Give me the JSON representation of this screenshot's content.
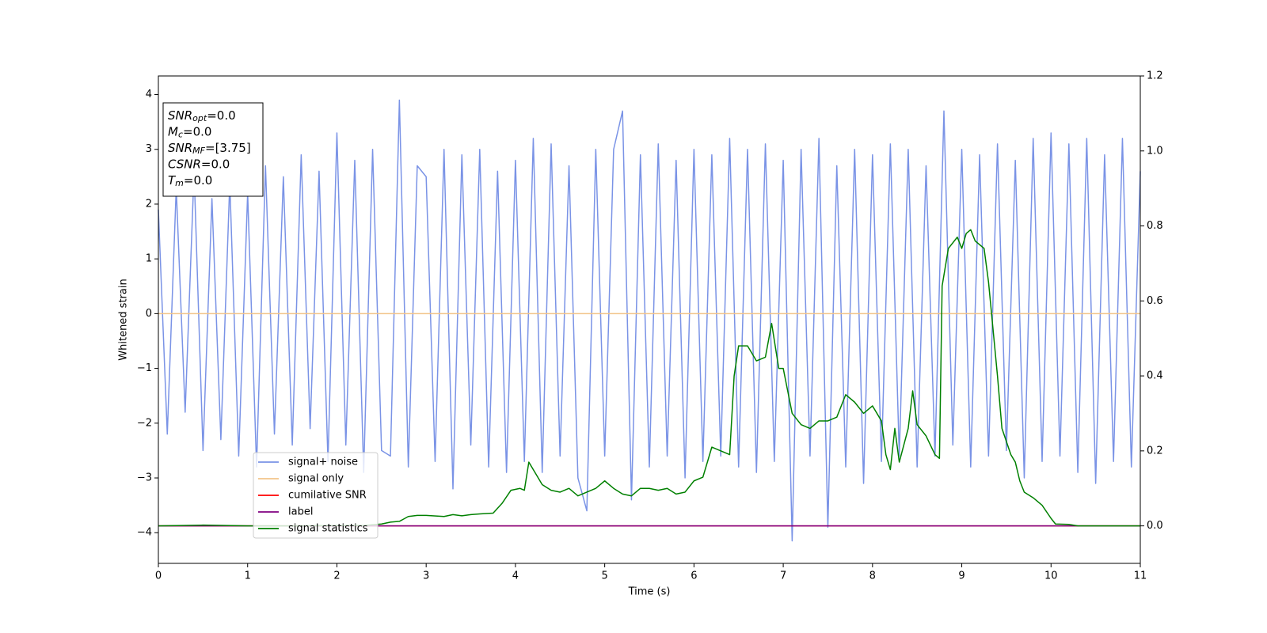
{
  "chart_data": {
    "type": "line",
    "xlabel": "Time (s)",
    "ylabel": "Whitened strain",
    "xlim": [
      0,
      11
    ],
    "xticks": [
      0,
      1,
      2,
      3,
      4,
      5,
      6,
      7,
      8,
      9,
      10,
      11
    ],
    "ylim": [
      -4.56,
      4.34
    ],
    "yticks": [
      {
        "value": -4,
        "label": "−4"
      },
      {
        "value": -3,
        "label": "−3"
      },
      {
        "value": -2,
        "label": "−2"
      },
      {
        "value": -1,
        "label": "−1"
      },
      0,
      1,
      2,
      3,
      4
    ],
    "y2lim": [
      -0.1,
      1.2
    ],
    "y2ticks": [
      {
        "value": 0,
        "label": "0.0"
      },
      0.2,
      0.4,
      0.6,
      0.8,
      {
        "value": 1,
        "label": "1.0"
      },
      1.2
    ],
    "annotations": [
      {
        "symbol": "SNR",
        "subscript": "opt",
        "text": "=0.0"
      },
      {
        "symbol": "M",
        "subscript": "c",
        "text": "=0.0"
      },
      {
        "symbol": "SNR",
        "subscript": "MF",
        "text": "=[3.75]"
      },
      {
        "symbol": "CSNR",
        "text": "=0.0"
      },
      {
        "symbol": "T",
        "subscript": "m",
        "text": "=0.0"
      }
    ],
    "series": [
      {
        "name": "signal+ noise",
        "color": "#7a93e6",
        "x": [
          0,
          0.1,
          0.2,
          0.3,
          0.4,
          0.5,
          0.6,
          0.7,
          0.8,
          0.9,
          1,
          1.1,
          1.2,
          1.3,
          1.4,
          1.5,
          1.6,
          1.7,
          1.8,
          1.9,
          2,
          2.1,
          2.2,
          2.3,
          2.4,
          2.5,
          2.6,
          2.7,
          2.8,
          2.9,
          3,
          3.1,
          3.2,
          3.3,
          3.4,
          3.5,
          3.6,
          3.7,
          3.8,
          3.9,
          4,
          4.1,
          4.2,
          4.3,
          4.4,
          4.5,
          4.6,
          4.7,
          4.8,
          4.9,
          5,
          5.1,
          5.2,
          5.3,
          5.4,
          5.5,
          5.6,
          5.7,
          5.8,
          5.9,
          6,
          6.1,
          6.2,
          6.3,
          6.4,
          6.5,
          6.6,
          6.7,
          6.8,
          6.9,
          7,
          7.1,
          7.2,
          7.3,
          7.4,
          7.5,
          7.6,
          7.7,
          7.8,
          7.9,
          8,
          8.1,
          8.2,
          8.3,
          8.4,
          8.5,
          8.6,
          8.7,
          8.8,
          8.9,
          9,
          9.1,
          9.2,
          9.3,
          9.4,
          9.5,
          9.6,
          9.7,
          9.8,
          9.9,
          10,
          10.1,
          10.2,
          10.3,
          10.4,
          10.5,
          10.6,
          10.7,
          10.8,
          10.9,
          11
        ],
        "values": [
          1.9,
          -2.2,
          2.3,
          -1.8,
          2.6,
          -2.5,
          2.1,
          -2.3,
          2.4,
          -2.6,
          2.2,
          -2.8,
          2.7,
          -2.2,
          2.5,
          -2.4,
          2.9,
          -2.1,
          2.6,
          -2.7,
          3.3,
          -2.4,
          2.8,
          -2.9,
          3.0,
          -2.5,
          -2.6,
          3.9,
          -2.8,
          2.7,
          2.5,
          -2.7,
          3.0,
          -3.2,
          2.9,
          -2.4,
          3.0,
          -2.8,
          2.6,
          -2.9,
          2.8,
          -2.7,
          3.2,
          -2.9,
          3.1,
          -2.6,
          2.7,
          -3.0,
          -3.6,
          3.0,
          -2.6,
          3.0,
          3.7,
          -3.4,
          2.9,
          -2.8,
          3.1,
          -2.6,
          2.8,
          -3.0,
          3.0,
          -2.7,
          2.9,
          -2.6,
          3.2,
          -2.8,
          3.0,
          -2.9,
          3.1,
          -2.7,
          2.8,
          -4.15,
          3.0,
          -2.6,
          3.2,
          -3.9,
          2.7,
          -2.8,
          3.0,
          -3.1,
          2.9,
          -2.7,
          3.1,
          -2.6,
          3.0,
          -2.8,
          2.7,
          -2.6,
          3.7,
          -2.4,
          3.0,
          -2.8,
          2.9,
          -2.6,
          3.1,
          -2.5,
          2.8,
          -3.0,
          3.2,
          -2.7,
          3.3,
          -2.6,
          3.1,
          -2.9,
          3.2,
          -3.1,
          2.9,
          -2.7,
          3.2,
          -2.8,
          2.6
        ]
      },
      {
        "name": "signal only",
        "color": "#f2c48a",
        "x": [
          0,
          11
        ],
        "values": [
          0,
          0
        ]
      },
      {
        "name": "cumilative SNR",
        "color": "#ff0000",
        "axis": "y2",
        "x": [
          0,
          11
        ],
        "values": [
          0,
          0
        ]
      },
      {
        "name": "label",
        "color": "#800080",
        "axis": "y2",
        "x": [
          0,
          11
        ],
        "values": [
          0,
          0
        ]
      },
      {
        "name": "signal statistics",
        "color": "#008000",
        "axis": "y2",
        "x": [
          0,
          0.5,
          1,
          1.5,
          2,
          2.3,
          2.5,
          2.6,
          2.7,
          2.8,
          2.9,
          3.0,
          3.2,
          3.3,
          3.4,
          3.5,
          3.6,
          3.75,
          3.85,
          3.95,
          4.05,
          4.1,
          4.15,
          4.2,
          4.3,
          4.4,
          4.5,
          4.6,
          4.7,
          4.8,
          4.9,
          5.0,
          5.1,
          5.2,
          5.3,
          5.4,
          5.5,
          5.6,
          5.7,
          5.8,
          5.9,
          6.0,
          6.1,
          6.2,
          6.3,
          6.4,
          6.45,
          6.5,
          6.6,
          6.7,
          6.8,
          6.87,
          6.95,
          7.0,
          7.1,
          7.2,
          7.3,
          7.4,
          7.5,
          7.6,
          7.7,
          7.8,
          7.9,
          8.0,
          8.1,
          8.15,
          8.2,
          8.25,
          8.3,
          8.4,
          8.45,
          8.5,
          8.6,
          8.7,
          8.75,
          8.78,
          8.85,
          8.95,
          9.0,
          9.05,
          9.1,
          9.15,
          9.25,
          9.3,
          9.4,
          9.45,
          9.55,
          9.6,
          9.65,
          9.7,
          9.8,
          9.9,
          10.0,
          10.05,
          10.2,
          10.3,
          11
        ],
        "values": [
          0.0,
          0.002,
          0.0,
          0.0,
          0.001,
          0.001,
          0.005,
          0.01,
          0.012,
          0.025,
          0.028,
          0.028,
          0.025,
          0.03,
          0.027,
          0.03,
          0.032,
          0.034,
          0.06,
          0.095,
          0.1,
          0.095,
          0.17,
          0.15,
          0.11,
          0.095,
          0.09,
          0.1,
          0.08,
          0.09,
          0.1,
          0.12,
          0.1,
          0.085,
          0.08,
          0.1,
          0.1,
          0.095,
          0.1,
          0.085,
          0.09,
          0.12,
          0.13,
          0.21,
          0.2,
          0.19,
          0.4,
          0.48,
          0.48,
          0.44,
          0.45,
          0.54,
          0.42,
          0.42,
          0.3,
          0.27,
          0.26,
          0.28,
          0.28,
          0.29,
          0.35,
          0.33,
          0.3,
          0.32,
          0.28,
          0.19,
          0.15,
          0.26,
          0.17,
          0.26,
          0.36,
          0.27,
          0.24,
          0.19,
          0.18,
          0.64,
          0.74,
          0.77,
          0.74,
          0.78,
          0.79,
          0.76,
          0.74,
          0.65,
          0.4,
          0.26,
          0.19,
          0.17,
          0.12,
          0.09,
          0.075,
          0.055,
          0.02,
          0.005,
          0.004,
          0.0,
          0.0
        ]
      }
    ]
  }
}
